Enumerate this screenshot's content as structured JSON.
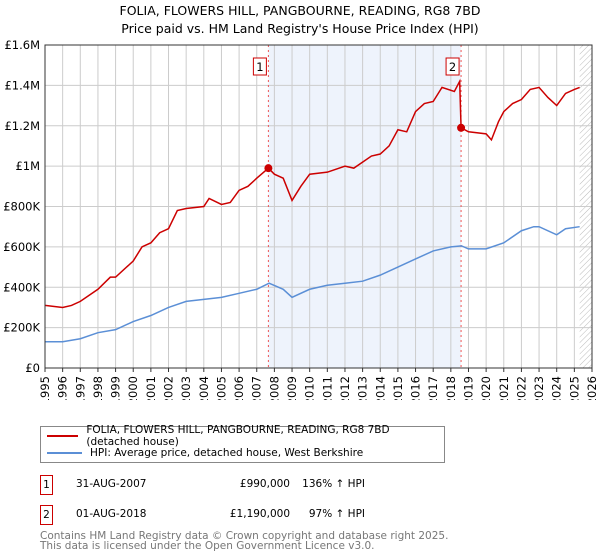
{
  "title_line1": "FOLIA, FLOWERS HILL, PANGBOURNE, READING, RG8 7BD",
  "title_line2": "Price paid vs. HM Land Registry's House Price Index (HPI)",
  "chart_data": {
    "type": "line",
    "xlim": [
      1995,
      2026
    ],
    "ylim": [
      0,
      1600000
    ],
    "yticks": [
      0,
      200000,
      400000,
      600000,
      800000,
      1000000,
      1200000,
      1400000,
      1600000
    ],
    "ytick_labels": [
      "£0",
      "£200K",
      "£400K",
      "£600K",
      "£800K",
      "£1M",
      "£1.2M",
      "£1.4M",
      "£1.6M"
    ],
    "xticks": [
      "1995",
      "1996",
      "1997",
      "1998",
      "1999",
      "2000",
      "2001",
      "2002",
      "2003",
      "2004",
      "2005",
      "2006",
      "2007",
      "2008",
      "2009",
      "2010",
      "2011",
      "2012",
      "2013",
      "2014",
      "2015",
      "2016",
      "2017",
      "2018",
      "2019",
      "2020",
      "2021",
      "2022",
      "2023",
      "2024",
      "2025",
      "2026"
    ],
    "grid": true,
    "shaded_period": [
      2007.66,
      2018.58
    ],
    "hatched_after": 2025.3,
    "series": [
      {
        "name": "FOLIA, FLOWERS HILL, PANGBOURNE, READING, RG8 7BD (detached house)",
        "color": "#cc0000",
        "x": [
          1995,
          1996,
          1996.5,
          1997,
          1998,
          1998.7,
          1999,
          2000,
          2000.5,
          2001,
          2001.5,
          2002,
          2002.5,
          2003,
          2004,
          2004.3,
          2005,
          2005.5,
          2006,
          2006.5,
          2007,
          2007.66,
          2008,
          2008.5,
          2009,
          2009.5,
          2010,
          2011,
          2012,
          2012.5,
          2013,
          2013.5,
          2014,
          2014.5,
          2015,
          2015.5,
          2016,
          2016.5,
          2017,
          2017.5,
          2018.2,
          2018.5,
          2018.58,
          2019,
          2020,
          2020.3,
          2020.7,
          2021,
          2021.5,
          2022,
          2022.5,
          2023,
          2023.5,
          2024,
          2024.5,
          2025,
          2025.3
        ],
        "y": [
          310000,
          300000,
          310000,
          330000,
          390000,
          450000,
          450000,
          530000,
          600000,
          620000,
          670000,
          690000,
          780000,
          790000,
          800000,
          840000,
          810000,
          820000,
          880000,
          900000,
          940000,
          990000,
          960000,
          940000,
          830000,
          900000,
          960000,
          970000,
          1000000,
          990000,
          1020000,
          1050000,
          1060000,
          1100000,
          1180000,
          1170000,
          1270000,
          1310000,
          1320000,
          1390000,
          1370000,
          1420000,
          1190000,
          1170000,
          1160000,
          1130000,
          1220000,
          1270000,
          1310000,
          1330000,
          1380000,
          1390000,
          1340000,
          1300000,
          1360000,
          1380000,
          1390000
        ]
      },
      {
        "name": "HPI: Average price, detached house, West Berkshire",
        "color": "#5b8fd6",
        "x": [
          1995,
          1996,
          1997,
          1998,
          1999,
          2000,
          2001,
          2002,
          2003,
          2004,
          2005,
          2006,
          2007,
          2007.7,
          2008.5,
          2009,
          2010,
          2011,
          2012,
          2013,
          2014,
          2015,
          2016,
          2017,
          2018,
          2018.6,
          2019,
          2020,
          2021,
          2022,
          2022.7,
          2023,
          2024,
          2024.5,
          2025.3
        ],
        "y": [
          130000,
          130000,
          145000,
          175000,
          190000,
          230000,
          260000,
          300000,
          330000,
          340000,
          350000,
          370000,
          390000,
          420000,
          390000,
          350000,
          390000,
          410000,
          420000,
          430000,
          460000,
          500000,
          540000,
          580000,
          600000,
          605000,
          590000,
          590000,
          620000,
          680000,
          700000,
          700000,
          660000,
          690000,
          700000
        ]
      }
    ],
    "markers": [
      {
        "label": "1",
        "x": 2007.66,
        "y": 990000
      },
      {
        "label": "2",
        "x": 2018.58,
        "y": 1190000
      }
    ]
  },
  "legend": {
    "red": "FOLIA, FLOWERS HILL, PANGBOURNE, READING, RG8 7BD (detached house)",
    "blue": "HPI: Average price, detached house, West Berkshire"
  },
  "sales": [
    {
      "num": "1",
      "date": "31-AUG-2007",
      "price": "£990,000",
      "hpi": "136% ↑ HPI"
    },
    {
      "num": "2",
      "date": "01-AUG-2018",
      "price": "£1,190,000",
      "hpi": "97% ↑ HPI"
    }
  ],
  "footer": {
    "line1": "Contains HM Land Registry data © Crown copyright and database right 2025.",
    "line2": "This data is licensed under the Open Government Licence v3.0."
  }
}
